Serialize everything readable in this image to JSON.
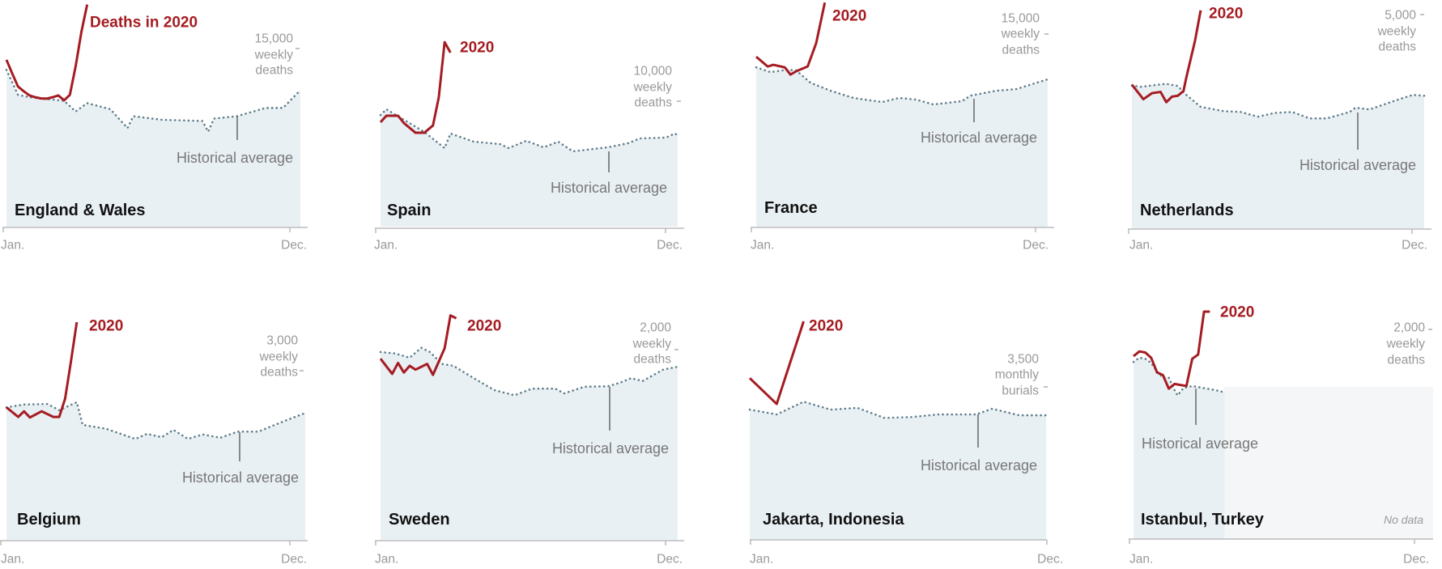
{
  "colors": {
    "deaths_2020": "#a51c22",
    "historical": "#5f7d8a",
    "area": "#e9f0f4",
    "no_data_area": "#f4f6f7",
    "axis": "#bbbbbb"
  },
  "chart_data": [
    {
      "type": "line",
      "name": "England & Wales",
      "label_2020": "Deaths in 2020",
      "scale_value": 15000,
      "scale_label": [
        "15,000",
        "weekly",
        "deaths"
      ],
      "historical_label": "Historical average",
      "x_unit": "week",
      "xlabels": [
        "Jan.",
        "Dec."
      ],
      "historical": [
        [
          1,
          13200
        ],
        [
          3,
          11100
        ],
        [
          5,
          10900
        ],
        [
          11,
          10600
        ],
        [
          13,
          9700
        ],
        [
          15,
          10400
        ],
        [
          19,
          9900
        ],
        [
          22,
          8300
        ],
        [
          23,
          9300
        ],
        [
          28,
          9000
        ],
        [
          35,
          8900
        ],
        [
          36,
          8000
        ],
        [
          37,
          9100
        ],
        [
          41,
          9300
        ],
        [
          46,
          10000
        ],
        [
          49,
          10000
        ],
        [
          52,
          11500
        ]
      ],
      "deaths_2020": [
        [
          1,
          14050
        ],
        [
          2,
          12900
        ],
        [
          3,
          11800
        ],
        [
          4,
          11400
        ],
        [
          5,
          11050
        ],
        [
          6,
          10900
        ],
        [
          7,
          10800
        ],
        [
          8,
          10780
        ],
        [
          9,
          10900
        ],
        [
          10,
          11050
        ],
        [
          11,
          10640
        ],
        [
          12,
          11100
        ],
        [
          13,
          13500
        ],
        [
          14,
          16400
        ],
        [
          15,
          18700
        ]
      ]
    },
    {
      "type": "line",
      "name": "Spain",
      "label_2020": "2020",
      "scale_value": 10000,
      "scale_label": [
        "10,000",
        "weekly",
        "deaths"
      ],
      "historical_label": "Historical average",
      "x_unit": "week",
      "xlabels": [
        "Jan.",
        "Dec."
      ],
      "historical": [
        [
          1,
          8900
        ],
        [
          2,
          9350
        ],
        [
          8.5,
          7550
        ],
        [
          12,
          6260
        ],
        [
          13,
          7420
        ],
        [
          17,
          6770
        ],
        [
          21.5,
          6580
        ],
        [
          23,
          6260
        ],
        [
          26,
          6840
        ],
        [
          29,
          6320
        ],
        [
          31.5,
          6770
        ],
        [
          34,
          6000
        ],
        [
          40,
          6320
        ],
        [
          43.5,
          6650
        ],
        [
          45.5,
          7030
        ],
        [
          50,
          7100
        ],
        [
          51.5,
          7420
        ],
        [
          52,
          7300
        ]
      ],
      "deaths_2020": [
        [
          1,
          8320
        ],
        [
          2,
          8840
        ],
        [
          4,
          8840
        ],
        [
          5,
          8260
        ],
        [
          7,
          7480
        ],
        [
          8.5,
          7480
        ],
        [
          10,
          8060
        ],
        [
          11,
          10320
        ],
        [
          12,
          14700
        ],
        [
          13,
          13870
        ]
      ]
    },
    {
      "type": "line",
      "name": "France",
      "label_2020": "2020",
      "scale_value": 15000,
      "scale_label": [
        "15,000",
        "weekly",
        "deaths"
      ],
      "historical_label": "Historical average",
      "x_unit": "week",
      "xlabels": [
        "Jan.",
        "Dec."
      ],
      "historical": [
        [
          1,
          12400
        ],
        [
          3.5,
          12030
        ],
        [
          6.5,
          12220
        ],
        [
          8,
          12160
        ],
        [
          10.5,
          11200
        ],
        [
          14,
          10580
        ],
        [
          18,
          10020
        ],
        [
          23,
          9700
        ],
        [
          26,
          10020
        ],
        [
          29,
          9890
        ],
        [
          32,
          9510
        ],
        [
          37,
          9770
        ],
        [
          38.5,
          10200
        ],
        [
          43,
          10580
        ],
        [
          46.5,
          10710
        ],
        [
          52,
          11470
        ]
      ],
      "deaths_2020": [
        [
          1,
          13230
        ],
        [
          3,
          12470
        ],
        [
          4,
          12600
        ],
        [
          6,
          12400
        ],
        [
          7,
          11840
        ],
        [
          8,
          12100
        ],
        [
          10,
          12470
        ],
        [
          11.5,
          14300
        ],
        [
          13,
          17450
        ]
      ]
    },
    {
      "type": "line",
      "name": "Netherlands",
      "label_2020": "2020",
      "scale_value": 5000,
      "scale_label": [
        "5,000",
        "weekly",
        "deaths"
      ],
      "historical_label": "Historical average",
      "x_unit": "week",
      "xlabels": [
        "Jan.",
        "Dec."
      ],
      "historical": [
        [
          1,
          3340
        ],
        [
          2.5,
          3310
        ],
        [
          7,
          3380
        ],
        [
          9,
          3330
        ],
        [
          10.5,
          3120
        ],
        [
          13,
          2840
        ],
        [
          17,
          2740
        ],
        [
          20,
          2720
        ],
        [
          23,
          2610
        ],
        [
          26,
          2700
        ],
        [
          29,
          2720
        ],
        [
          32,
          2570
        ],
        [
          35,
          2570
        ],
        [
          39,
          2720
        ],
        [
          40,
          2820
        ],
        [
          42.5,
          2780
        ],
        [
          47,
          2990
        ],
        [
          50,
          3120
        ],
        [
          52,
          3100
        ]
      ],
      "deaths_2020": [
        [
          1,
          3360
        ],
        [
          3,
          3020
        ],
        [
          4.5,
          3160
        ],
        [
          6,
          3190
        ],
        [
          7,
          2950
        ],
        [
          8,
          3080
        ],
        [
          9,
          3100
        ],
        [
          10,
          3210
        ],
        [
          10.5,
          3530
        ],
        [
          12,
          4380
        ],
        [
          13,
          5100
        ]
      ]
    },
    {
      "type": "line",
      "name": "Belgium",
      "label_2020": "2020",
      "scale_value": 3000,
      "scale_label": [
        "3,000",
        "weekly",
        "deaths"
      ],
      "historical_label": "Historical average",
      "x_unit": "week",
      "xlabels": [
        "Jan.",
        "Dec."
      ],
      "historical": [
        [
          1,
          2350
        ],
        [
          4,
          2400
        ],
        [
          8,
          2410
        ],
        [
          10,
          2300
        ],
        [
          13,
          2440
        ],
        [
          14,
          2040
        ],
        [
          18,
          1970
        ],
        [
          23,
          1790
        ],
        [
          25,
          1880
        ],
        [
          27.5,
          1820
        ],
        [
          29.5,
          1950
        ],
        [
          32,
          1790
        ],
        [
          34.5,
          1870
        ],
        [
          37.5,
          1810
        ],
        [
          40.5,
          1920
        ],
        [
          44,
          1920
        ],
        [
          48.5,
          2110
        ],
        [
          52,
          2250
        ]
      ],
      "deaths_2020": [
        [
          1,
          2350
        ],
        [
          3,
          2180
        ],
        [
          4,
          2280
        ],
        [
          5,
          2170
        ],
        [
          7,
          2280
        ],
        [
          9,
          2180
        ],
        [
          10,
          2180
        ],
        [
          11,
          2500
        ],
        [
          12,
          3160
        ],
        [
          13,
          3860
        ]
      ]
    },
    {
      "type": "line",
      "name": "Sweden",
      "label_2020": "2020",
      "scale_value": 2000,
      "scale_label": [
        "2,000",
        "weekly",
        "deaths"
      ],
      "historical_label": "Historical average",
      "x_unit": "week",
      "xlabels": [
        "Jan.",
        "Dec."
      ],
      "historical": [
        [
          1,
          1975
        ],
        [
          3.5,
          1960
        ],
        [
          6,
          1915
        ],
        [
          8,
          2020
        ],
        [
          9.5,
          1975
        ],
        [
          11.5,
          1850
        ],
        [
          13.5,
          1830
        ],
        [
          17,
          1700
        ],
        [
          20.5,
          1575
        ],
        [
          24,
          1520
        ],
        [
          27,
          1590
        ],
        [
          31,
          1590
        ],
        [
          32.5,
          1540
        ],
        [
          36,
          1610
        ],
        [
          40,
          1615
        ],
        [
          42,
          1650
        ],
        [
          44,
          1700
        ],
        [
          46,
          1670
        ],
        [
          49.5,
          1790
        ],
        [
          52,
          1820
        ]
      ],
      "deaths_2020": [
        [
          1,
          1905
        ],
        [
          3,
          1745
        ],
        [
          4,
          1860
        ],
        [
          5,
          1760
        ],
        [
          6,
          1830
        ],
        [
          7,
          1790
        ],
        [
          9,
          1850
        ],
        [
          10,
          1735
        ],
        [
          12,
          2015
        ],
        [
          13,
          2360
        ],
        [
          14,
          2330
        ]
      ]
    },
    {
      "type": "line",
      "name": "Jakarta, Indonesia",
      "label_2020": "2020",
      "scale_value": 3500,
      "scale_label": [
        "3,500",
        "monthly",
        "burials"
      ],
      "historical_label": "Historical average",
      "x_unit": "month",
      "xlabels": [
        "Jan.",
        "Dec."
      ],
      "historical": [
        [
          1,
          2980
        ],
        [
          2,
          2870
        ],
        [
          3,
          3160
        ],
        [
          4,
          2980
        ],
        [
          5,
          3020
        ],
        [
          6,
          2790
        ],
        [
          7,
          2810
        ],
        [
          8,
          2870
        ],
        [
          9.4,
          2870
        ],
        [
          10,
          3000
        ],
        [
          11,
          2850
        ],
        [
          12,
          2850
        ]
      ],
      "deaths_2020": [
        [
          1,
          3700
        ],
        [
          2,
          3110
        ],
        [
          3,
          5000
        ]
      ]
    },
    {
      "type": "line",
      "name": "Istanbul, Turkey",
      "label_2020": "2020",
      "scale_value": 2000,
      "scale_label": [
        "2,000",
        "weekly",
        "deaths"
      ],
      "historical_label": "Historical average",
      "no_data_label": "No data",
      "x_unit": "week",
      "xlabels": [
        "Jan.",
        "Dec."
      ],
      "historical": [
        [
          1,
          1690
        ],
        [
          2,
          1730
        ],
        [
          3,
          1720
        ],
        [
          4,
          1680
        ],
        [
          5,
          1600
        ],
        [
          6,
          1540
        ],
        [
          7,
          1540
        ],
        [
          8,
          1420
        ],
        [
          8.5,
          1370
        ],
        [
          9.5,
          1440
        ],
        [
          11,
          1460
        ],
        [
          13,
          1440
        ],
        [
          15,
          1420
        ],
        [
          16.5,
          1400
        ]
      ],
      "deaths_2020": [
        [
          1,
          1745
        ],
        [
          2,
          1790
        ],
        [
          3,
          1780
        ],
        [
          4,
          1730
        ],
        [
          5,
          1590
        ],
        [
          6,
          1565
        ],
        [
          7,
          1435
        ],
        [
          8,
          1480
        ],
        [
          10,
          1460
        ],
        [
          11,
          1720
        ],
        [
          12,
          1760
        ],
        [
          13,
          2170
        ],
        [
          14,
          2170
        ]
      ]
    }
  ]
}
